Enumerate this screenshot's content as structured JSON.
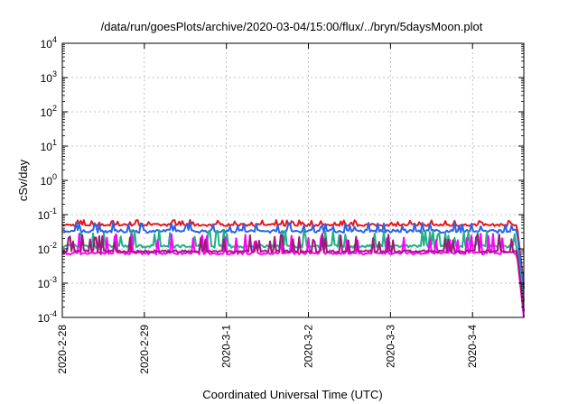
{
  "chart_data": {
    "type": "line",
    "title": "/data/run/goesPlots/archive/2020-03-04/15:00/flux/../bryn/5daysMoon.plot",
    "xlabel": "Coordinated Universal Time (UTC)",
    "ylabel": "cSv/day",
    "yscale": "log",
    "ylim": [
      0.0001,
      10000
    ],
    "xlim": [
      "2020-02-28",
      "2020-03-04 15:00"
    ],
    "x_ticks": [
      "2020-2-28",
      "2020-2-29",
      "2020-3-1",
      "2020-3-2",
      "2020-3-3",
      "2020-3-4"
    ],
    "y_ticks": [
      {
        "base": "10",
        "exp": "4",
        "value": 10000
      },
      {
        "base": "10",
        "exp": "3",
        "value": 1000
      },
      {
        "base": "10",
        "exp": "2",
        "value": 100
      },
      {
        "base": "10",
        "exp": "1",
        "value": 10
      },
      {
        "base": "10",
        "exp": "0",
        "value": 1
      },
      {
        "base": "10",
        "exp": "-1",
        "value": 0.1
      },
      {
        "base": "10",
        "exp": "-2",
        "value": 0.01
      },
      {
        "base": "10",
        "exp": "-3",
        "value": 0.001
      },
      {
        "base": "10",
        "exp": "-4",
        "value": 0.0001
      }
    ],
    "grid": true,
    "series": [
      {
        "color": "#e8171d",
        "base": 0.05,
        "lo": 0.04,
        "hi": 0.07,
        "end": 0.0009,
        "x_end": "2020-03-04 15:00"
      },
      {
        "color": "#2a63e8",
        "base": 0.033,
        "lo": 0.024,
        "hi": 0.06,
        "end": 0.0007,
        "x_end": "2020-03-04 15:00"
      },
      {
        "color": "#20b084",
        "base": 0.012,
        "lo": 0.009,
        "hi": 0.035,
        "end": 0.0003,
        "x_end": "2020-03-04 15:00"
      },
      {
        "color": "#ff00ff",
        "base": 0.0075,
        "lo": 0.006,
        "hi": 0.028,
        "end": 0.0001,
        "x_end": "2020-03-04 15:00"
      },
      {
        "color": "#9b1a7a",
        "base": 0.0085,
        "lo": 0.007,
        "hi": 0.026,
        "end": 0.00015,
        "x_end": "2020-03-04 15:00"
      }
    ]
  }
}
